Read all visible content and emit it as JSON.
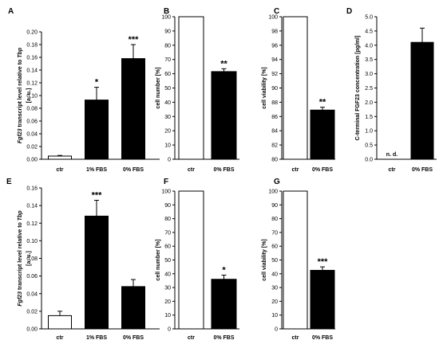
{
  "chart_data": [
    {
      "panel": "A",
      "type": "bar",
      "ylabel_parts": [
        {
          "t": "Fgf23",
          "i": true
        },
        {
          "t": " transcript level relative to ",
          "i": false
        },
        {
          "t": "Tbp",
          "i": true
        }
      ],
      "ylabel_line2": "[a. u.]",
      "ylim": [
        0,
        0.2
      ],
      "yticks": [
        "0.00",
        "0.02",
        "0.04",
        "0.06",
        "0.08",
        "0.10",
        "0.12",
        "0.14",
        "0.16",
        "0.18",
        "0.20"
      ],
      "categories": [
        "ctr",
        "1% FBS",
        "0% FBS"
      ],
      "values": [
        0.005,
        0.093,
        0.158
      ],
      "errors": [
        0.001,
        0.02,
        0.022
      ],
      "fills": [
        "#ffffff",
        "#000000",
        "#000000"
      ],
      "significance": [
        "",
        "*",
        "***"
      ]
    },
    {
      "panel": "B",
      "type": "bar",
      "ylabel_parts": [
        {
          "t": "cell number [%]",
          "i": false
        }
      ],
      "ylabel_line2": "",
      "ylim": [
        0,
        100
      ],
      "yticks": [
        "0",
        "10",
        "20",
        "30",
        "40",
        "50",
        "60",
        "70",
        "80",
        "90",
        "100"
      ],
      "categories": [
        "ctr",
        "0% FBS"
      ],
      "values": [
        100,
        61.5
      ],
      "errors": [
        0,
        2
      ],
      "fills": [
        "#ffffff",
        "#000000"
      ],
      "significance": [
        "",
        "**"
      ]
    },
    {
      "panel": "C",
      "type": "bar",
      "ylabel_parts": [
        {
          "t": "cell viability [%]",
          "i": false
        }
      ],
      "ylabel_line2": "",
      "ylim": [
        80,
        100
      ],
      "yticks": [
        "80",
        "82",
        "84",
        "86",
        "88",
        "90",
        "92",
        "94",
        "96",
        "98",
        "100"
      ],
      "categories": [
        "ctr",
        "0% FBS"
      ],
      "values": [
        100,
        86.9
      ],
      "errors": [
        0,
        0.4
      ],
      "fills": [
        "#ffffff",
        "#000000"
      ],
      "significance": [
        "",
        "**"
      ]
    },
    {
      "panel": "D",
      "type": "bar",
      "ylabel_parts": [
        {
          "t": "C-terminal FGF23 concentration [pg/ml]",
          "i": false
        }
      ],
      "ylabel_line2": "",
      "ylim": [
        0,
        5.0
      ],
      "yticks": [
        "0.0",
        "0.5",
        "1.0",
        "1.5",
        "2.0",
        "2.5",
        "3.0",
        "3.5",
        "4.0",
        "4.5",
        "5.0"
      ],
      "categories": [
        "ctr",
        "0% FBS"
      ],
      "values": [
        null,
        4.1
      ],
      "errors": [
        0,
        0.5
      ],
      "fills": [
        "#ffffff",
        "#000000"
      ],
      "significance": [
        "",
        ""
      ],
      "annotation": "n. d."
    },
    {
      "panel": "E",
      "type": "bar",
      "ylabel_parts": [
        {
          "t": "Fgf23",
          "i": true
        },
        {
          "t": " transcript level relative to ",
          "i": false
        },
        {
          "t": "Tbp",
          "i": true
        }
      ],
      "ylabel_line2": "[a. u.]",
      "ylim": [
        0,
        0.16
      ],
      "yticks": [
        "0.00",
        "0.02",
        "0.04",
        "0.06",
        "0.08",
        "0.10",
        "0.12",
        "0.14",
        "0.16"
      ],
      "categories": [
        "ctr",
        "1% FBS",
        "0% FBS"
      ],
      "values": [
        0.015,
        0.128,
        0.048
      ],
      "errors": [
        0.005,
        0.018,
        0.008
      ],
      "fills": [
        "#ffffff",
        "#000000",
        "#000000"
      ],
      "significance": [
        "",
        "***",
        ""
      ]
    },
    {
      "panel": "F",
      "type": "bar",
      "ylabel_parts": [
        {
          "t": "cell number [%]",
          "i": false
        }
      ],
      "ylabel_line2": "",
      "ylim": [
        0,
        100
      ],
      "yticks": [
        "0",
        "10",
        "20",
        "30",
        "40",
        "50",
        "60",
        "70",
        "80",
        "90",
        "100"
      ],
      "categories": [
        "ctr",
        "0% FBS"
      ],
      "values": [
        100,
        36
      ],
      "errors": [
        0,
        3
      ],
      "fills": [
        "#ffffff",
        "#000000"
      ],
      "significance": [
        "",
        "*"
      ]
    },
    {
      "panel": "G",
      "type": "bar",
      "ylabel_parts": [
        {
          "t": "cell viability [%]",
          "i": false
        }
      ],
      "ylabel_line2": "",
      "ylim": [
        0,
        100
      ],
      "yticks": [
        "0",
        "10",
        "20",
        "30",
        "40",
        "50",
        "60",
        "70",
        "80",
        "90",
        "100"
      ],
      "categories": [
        "ctr",
        "0% FBS"
      ],
      "values": [
        100,
        42.5
      ],
      "errors": [
        0,
        2.5
      ],
      "fills": [
        "#ffffff",
        "#000000"
      ],
      "significance": [
        "",
        "***"
      ]
    }
  ]
}
